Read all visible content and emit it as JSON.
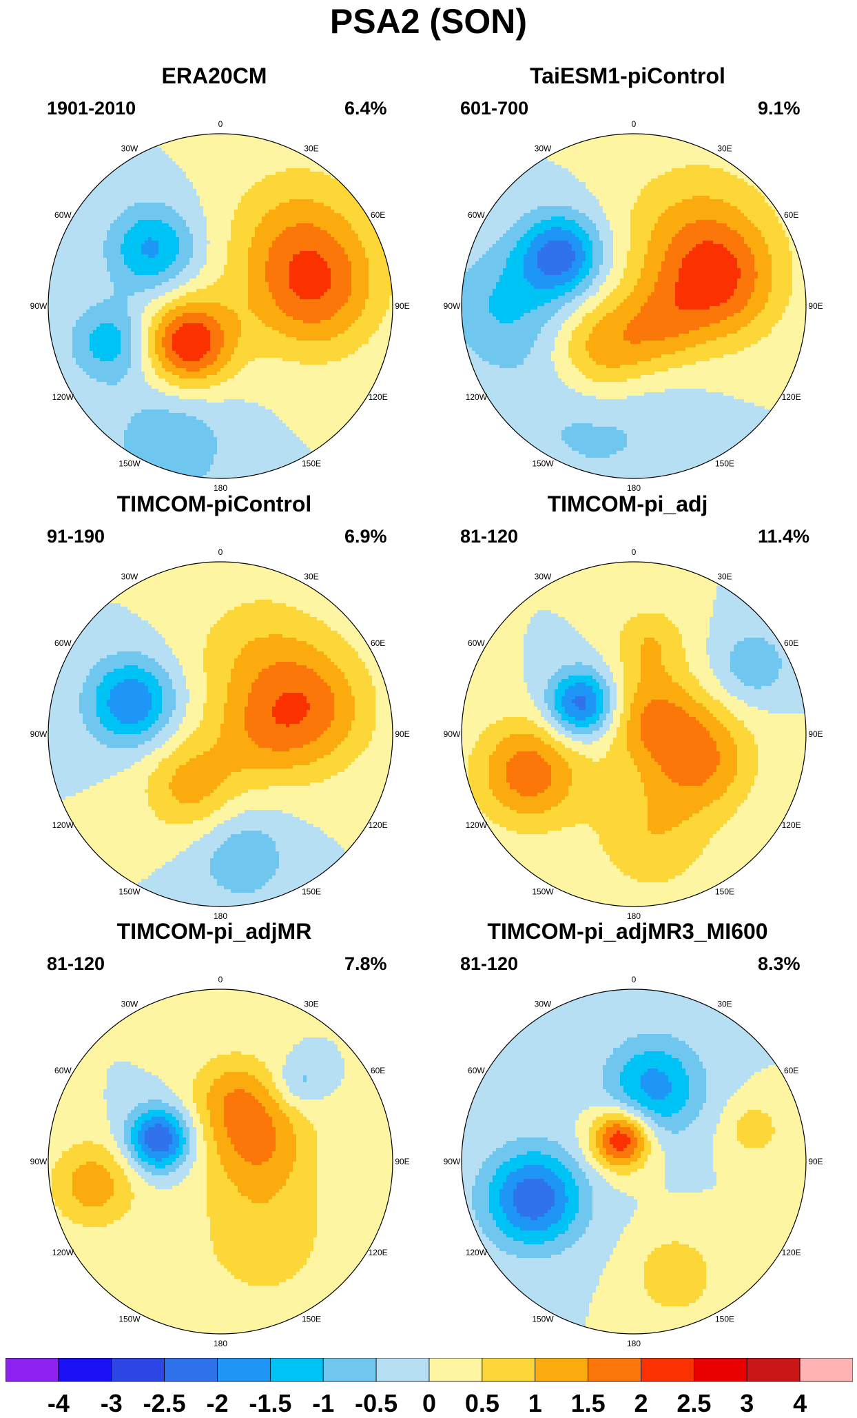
{
  "title": "PSA2 (SON)",
  "lon_labels": [
    "0",
    "30E",
    "60E",
    "90E",
    "120E",
    "150E",
    "180",
    "150W",
    "120W",
    "90W",
    "60W",
    "30W"
  ],
  "panels": [
    {
      "title": "ERA20CM",
      "period": "1901-2010",
      "variance": "6.4%",
      "blobs": [
        {
          "lon": 80,
          "r": 0.55,
          "val": 1.7,
          "s": 0.27
        },
        {
          "lon": 45,
          "r": 0.62,
          "val": 0.9,
          "s": 0.3
        },
        {
          "lon": -50,
          "r": 0.52,
          "val": -1.6,
          "s": 0.18
        },
        {
          "lon": -108,
          "r": 0.68,
          "val": -1.3,
          "s": 0.16
        },
        {
          "lon": -160,
          "r": 0.85,
          "val": -0.9,
          "s": 0.25
        },
        {
          "lon": -140,
          "r": 0.28,
          "val": 2.5,
          "s": 0.18
        }
      ]
    },
    {
      "title": "TaiESM1-piControl",
      "period": "601-700",
      "variance": "9.1%",
      "blobs": [
        {
          "lon": 75,
          "r": 0.5,
          "val": 1.7,
          "s": 0.25
        },
        {
          "lon": 40,
          "r": 0.55,
          "val": 1.0,
          "s": 0.32
        },
        {
          "lon": -55,
          "r": 0.52,
          "val": -2.2,
          "s": 0.17
        },
        {
          "lon": -90,
          "r": 0.75,
          "val": -1.0,
          "s": 0.25
        },
        {
          "lon": -160,
          "r": 0.6,
          "val": -0.8,
          "s": 0.35
        },
        {
          "lon": -145,
          "r": 0.32,
          "val": 1.7,
          "s": 0.22
        },
        {
          "lon": 130,
          "r": 0.2,
          "val": 0.9,
          "s": 0.18
        }
      ]
    },
    {
      "title": "TIMCOM-piControl",
      "period": "91-190",
      "variance": "6.9%",
      "blobs": [
        {
          "lon": 75,
          "r": 0.52,
          "val": 1.6,
          "s": 0.26
        },
        {
          "lon": 25,
          "r": 0.5,
          "val": 0.8,
          "s": 0.3
        },
        {
          "lon": -70,
          "r": 0.55,
          "val": -2.0,
          "s": 0.18
        },
        {
          "lon": -150,
          "r": 0.35,
          "val": 1.2,
          "s": 0.2
        },
        {
          "lon": 170,
          "r": 0.72,
          "val": -0.9,
          "s": 0.2
        },
        {
          "lon": 100,
          "r": 0.2,
          "val": 0.6,
          "s": 0.2
        }
      ]
    },
    {
      "title": "TIMCOM-pi_adj",
      "period": "81-120",
      "variance": "11.4%",
      "blobs": [
        {
          "lon": -60,
          "r": 0.35,
          "val": -2.4,
          "s": 0.14
        },
        {
          "lon": -110,
          "r": 0.65,
          "val": 1.8,
          "s": 0.22
        },
        {
          "lon": 110,
          "r": 0.42,
          "val": 1.5,
          "s": 0.22
        },
        {
          "lon": 45,
          "r": 0.15,
          "val": 1.4,
          "s": 0.2
        },
        {
          "lon": 60,
          "r": 0.8,
          "val": -0.9,
          "s": 0.15
        },
        {
          "lon": 10,
          "r": 0.55,
          "val": 0.9,
          "s": 0.15
        },
        {
          "lon": 170,
          "r": 0.6,
          "val": 0.9,
          "s": 0.25
        }
      ]
    },
    {
      "title": "TIMCOM-pi_adjMR",
      "period": "81-120",
      "variance": "7.8%",
      "blobs": [
        {
          "lon": -70,
          "r": 0.38,
          "val": -2.6,
          "s": 0.13
        },
        {
          "lon": -100,
          "r": 0.75,
          "val": 1.3,
          "s": 0.18
        },
        {
          "lon": 60,
          "r": 0.25,
          "val": 1.4,
          "s": 0.22
        },
        {
          "lon": 10,
          "r": 0.4,
          "val": 1.0,
          "s": 0.18
        },
        {
          "lon": 150,
          "r": 0.5,
          "val": 0.8,
          "s": 0.3
        },
        {
          "lon": 45,
          "r": 0.65,
          "val": -0.8,
          "s": 0.1
        }
      ]
    },
    {
      "title": "TIMCOM-pi_adjMR3_MI600",
      "period": "81-120",
      "variance": "8.3%",
      "blobs": [
        {
          "lon": 15,
          "r": 0.45,
          "val": -1.7,
          "s": 0.2
        },
        {
          "lon": -110,
          "r": 0.62,
          "val": -2.4,
          "s": 0.2
        },
        {
          "lon": -30,
          "r": 0.15,
          "val": 2.6,
          "s": 0.12
        },
        {
          "lon": 160,
          "r": 0.7,
          "val": 1.0,
          "s": 0.16
        },
        {
          "lon": 75,
          "r": 0.72,
          "val": 0.8,
          "s": 0.12
        }
      ]
    }
  ],
  "colorbar": {
    "colors": [
      "#8c21f0",
      "#1a10f5",
      "#2c46e5",
      "#2f72eb",
      "#1e96f5",
      "#00c3f5",
      "#6fc7f0",
      "#b6dff4",
      "#fdf5a2",
      "#fdd637",
      "#fbab0d",
      "#fb770a",
      "#fb3200",
      "#e90000",
      "#ca1616",
      "#ffb3b3"
    ],
    "labels": [
      "-4",
      "-3",
      "-2.5",
      "-2",
      "-1.5",
      "-1",
      "-0.5",
      "0",
      "0.5",
      "1",
      "1.5",
      "2",
      "2.5",
      "3",
      "4"
    ]
  }
}
